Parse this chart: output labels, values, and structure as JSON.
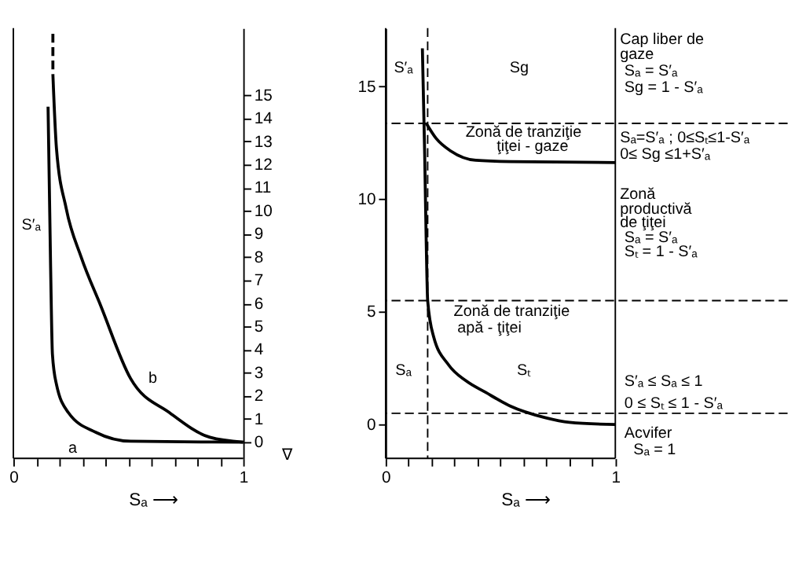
{
  "chart_data": [
    {
      "type": "line",
      "xlabel": "Sₐ ⟶",
      "xlim": [
        0,
        1
      ],
      "ylim": [
        -0.7,
        17.9
      ],
      "grid": false,
      "legend": false,
      "marker": "none",
      "xticks": [
        0,
        {
          "value": 0.1,
          "label": null
        },
        {
          "value": 0.2,
          "label": null
        },
        {
          "value": 0.3,
          "label": null
        },
        {
          "value": 0.4,
          "label": null
        },
        {
          "value": 0.5,
          "label": null
        },
        {
          "value": 0.6,
          "label": null
        },
        {
          "value": 0.7,
          "label": null
        },
        {
          "value": 0.8,
          "label": null
        },
        {
          "value": 0.9,
          "label": null
        },
        1
      ],
      "yticks": [
        0,
        1,
        2,
        3,
        4,
        5,
        6,
        7,
        8,
        9,
        10,
        11,
        12,
        13,
        14,
        15
      ],
      "series": [
        {
          "color": "#000000",
          "line_style": "solid",
          "x": [
            0.151,
            0.162,
            0.17,
            0.1875,
            0.24,
            0.36,
            0.51,
            1
          ],
          "values": [
            14.5,
            7.6,
            3.8,
            2.5,
            1.27,
            0.42,
            0.04,
            0
          ]
        },
        {
          "color": "#000000",
          "line_style": "solid",
          "x": [
            0.172,
            0.1875,
            0.23,
            0.295,
            0.38,
            0.51,
            0.68,
            0.855,
            1
          ],
          "values": [
            15.9,
            12.7,
            10.1,
            8.0,
            5.9,
            2.75,
            1.27,
            0.21,
            0
          ]
        },
        {
          "color": "#000000",
          "line_style": "dashed",
          "x": [
            0.172,
            0.172
          ],
          "values": [
            17.65,
            15.9
          ]
        }
      ],
      "annotations": [
        "S′ₐ",
        "a",
        "b",
        "∇"
      ]
    },
    {
      "type": "line",
      "xlabel": "Sₐ ⟶",
      "xlim": [
        0,
        1.75
      ],
      "ylim": [
        -1.5,
        17.6
      ],
      "grid": false,
      "legend": false,
      "marker": "none",
      "xticks": [
        0,
        {
          "value": 0.1,
          "label": null
        },
        {
          "value": 0.2,
          "label": null
        },
        {
          "value": 0.3,
          "label": null
        },
        {
          "value": 0.4,
          "label": null
        },
        {
          "value": 0.5,
          "label": null
        },
        {
          "value": 0.6,
          "label": null
        },
        {
          "value": 0.7,
          "label": null
        },
        {
          "value": 0.8,
          "label": null
        },
        {
          "value": 0.9,
          "label": null
        },
        1
      ],
      "yticks": [
        0,
        5,
        10,
        15
      ],
      "series": [
        {
          "color": "#000000",
          "line_style": "solid",
          "x": [
            0.16,
            0.17,
            0.177,
            0.183,
            0.209,
            0.274,
            0.35,
            0.435,
            0.543,
            0.694,
            0.8,
            1
          ],
          "values": [
            16.7,
            12.0,
            7.96,
            5.5,
            3.9,
            2.65,
            1.94,
            1.43,
            0.82,
            0.31,
            0.1,
            0
          ]
        },
        {
          "color": "#000000",
          "line_style": "solid",
          "x": [
            0.177,
            0.22,
            0.284,
            0.392,
            0.543,
            1
          ],
          "values": [
            13.37,
            12.7,
            12.14,
            11.73,
            11.67,
            11.63
          ]
        }
      ],
      "ref_lines": [
        {
          "axis": "x",
          "value": 1,
          "line_style": "solid"
        },
        {
          "axis": "x",
          "value": 0.183,
          "line_style": "dashed"
        },
        {
          "axis": "y",
          "value": 13.37,
          "line_style": "dashed"
        },
        {
          "axis": "y",
          "value": 5.5,
          "line_style": "dashed"
        },
        {
          "axis": "y",
          "value": 0.5,
          "line_style": "dashed"
        }
      ],
      "annotations": [
        "S′ₐ",
        "Sg",
        "Zonă de tranziţie",
        "ţiţei - gaze",
        "Zonă de tranziţie",
        "apă - ţiţei",
        "Sₐ",
        "Sₜ",
        "Cap liber de",
        "gaze",
        "Sₐ = S′ₐ",
        "Sg = 1 - S′ₐ",
        "Sₐ=S′ₐ ; 0≤Sₜ≤1-S′ₐ",
        "0≤ Sg ≤1+S′ₐ",
        "Zonă",
        "productivă",
        "de ţiţei",
        "Sₐ = S′ₐ",
        "Sₜ = 1 - S′ₐ",
        "S′ₐ ≤ Sₐ ≤ 1",
        "0 ≤ Sₜ ≤ 1 - S′ₐ",
        "Acvifer",
        "Sₐ = 1"
      ]
    }
  ]
}
